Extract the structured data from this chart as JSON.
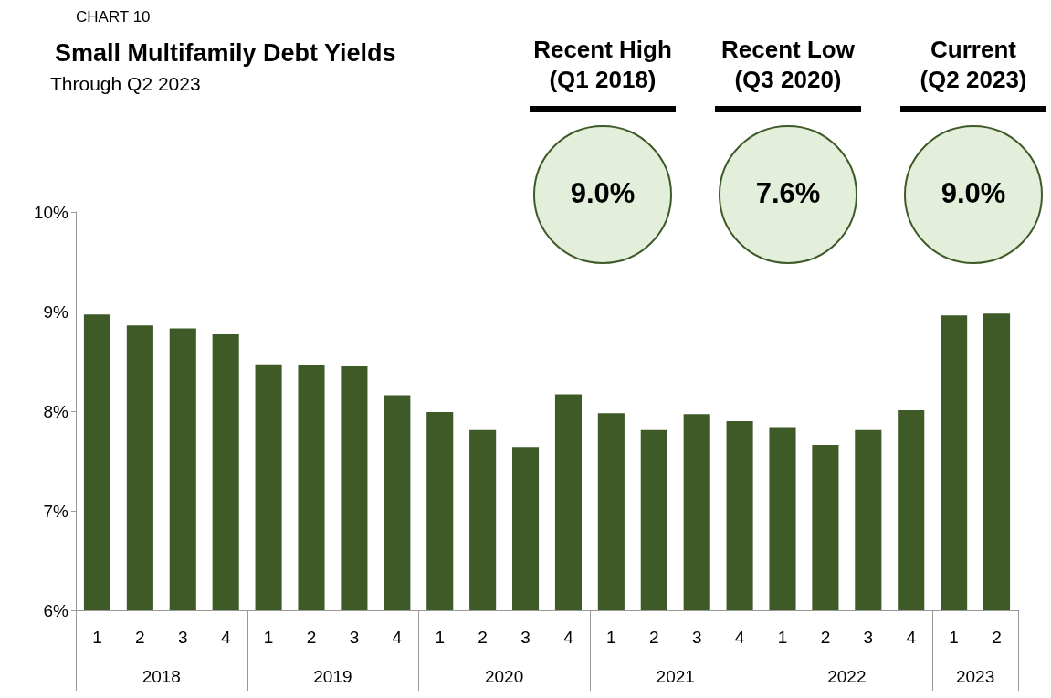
{
  "chart_data": {
    "type": "bar",
    "title": "Small Multifamily Debt Yields",
    "subtitle": "Through Q2 2023",
    "categories": [
      "1",
      "2",
      "3",
      "4",
      "1",
      "2",
      "3",
      "4",
      "1",
      "2",
      "3",
      "4",
      "1",
      "2",
      "3",
      "4",
      "1",
      "2",
      "3",
      "4",
      "1",
      "2"
    ],
    "values": [
      8.97,
      8.86,
      8.83,
      8.77,
      8.47,
      8.46,
      8.45,
      8.16,
      7.99,
      7.81,
      7.64,
      8.17,
      7.98,
      7.81,
      7.97,
      7.9,
      7.84,
      7.66,
      7.81,
      8.01,
      8.96,
      8.98
    ],
    "color": "#3d5a27",
    "ylim": [
      6,
      10
    ],
    "yticks": [
      {
        "value": 6,
        "label": "6%"
      },
      {
        "value": 7,
        "label": "7%"
      },
      {
        "value": 8,
        "label": "8%"
      },
      {
        "value": 9,
        "label": "9%"
      },
      {
        "value": 10,
        "label": "10%"
      }
    ],
    "grid": false,
    "annotations": [
      "CHART 10",
      "2018",
      "2019",
      "2020",
      "2021",
      "2022",
      "2023",
      "Recent High\n(Q1 2018)",
      "9.0%",
      "Recent Low\n(Q3 2020)",
      "7.6%",
      "Current\n(Q2 2023)",
      "9.0%"
    ]
  }
}
